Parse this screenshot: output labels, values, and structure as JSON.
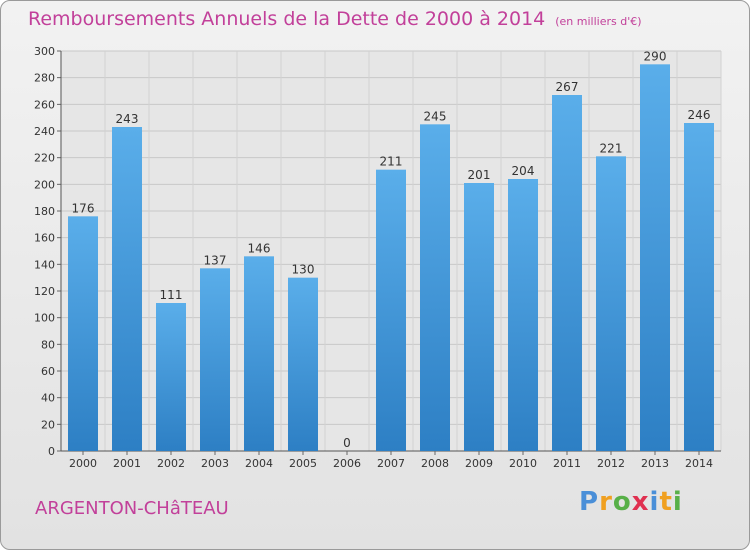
{
  "chart_data": {
    "type": "bar",
    "title": "Remboursements Annuels de la Dette de 2000 à 2014",
    "unit": "(en milliers d'€)",
    "categories": [
      "2000",
      "2001",
      "2002",
      "2003",
      "2004",
      "2005",
      "2006",
      "2007",
      "2008",
      "2009",
      "2010",
      "2011",
      "2012",
      "2013",
      "2014"
    ],
    "values": [
      176,
      243,
      111,
      137,
      146,
      130,
      0,
      211,
      245,
      201,
      204,
      267,
      221,
      290,
      246
    ],
    "ylim": [
      0,
      300
    ],
    "yticks": [
      0,
      20,
      40,
      60,
      80,
      100,
      120,
      140,
      160,
      180,
      200,
      220,
      240,
      260,
      280,
      300
    ],
    "grid": true,
    "xlabel": "",
    "ylabel": ""
  },
  "footer": {
    "commune": "ARGENTON-CHâTEAU",
    "logo_letters": [
      "P",
      "r",
      "o",
      "x",
      "i",
      "t",
      "i"
    ]
  },
  "colors": {
    "title": "#c2409a",
    "bar_light": "#5aaeea",
    "bar_dark": "#2d7fc4",
    "logo": [
      "#4a8fd8",
      "#f0a020",
      "#58b048",
      "#e03050",
      "#4a8fd8",
      "#f0a020",
      "#58b048"
    ]
  }
}
